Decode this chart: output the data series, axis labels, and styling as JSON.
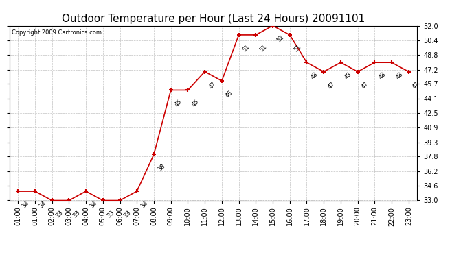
{
  "title": "Outdoor Temperature per Hour (Last 24 Hours) 20091101",
  "copyright": "Copyright 2009 Cartronics.com",
  "hours": [
    "01:00",
    "01:00",
    "02:00",
    "03:00",
    "04:00",
    "05:00",
    "06:00",
    "07:00",
    "08:00",
    "09:00",
    "10:00",
    "11:00",
    "12:00",
    "13:00",
    "14:00",
    "15:00",
    "16:00",
    "17:00",
    "18:00",
    "19:00",
    "20:00",
    "21:00",
    "22:00",
    "23:00"
  ],
  "values": [
    34,
    34,
    33,
    33,
    34,
    33,
    33,
    34,
    38,
    45,
    45,
    47,
    46,
    51,
    51,
    52,
    51,
    48,
    47,
    48,
    47,
    48,
    48,
    47
  ],
  "ylim": [
    33.0,
    52.0
  ],
  "yticks": [
    33.0,
    34.6,
    36.2,
    37.8,
    39.3,
    40.9,
    42.5,
    44.1,
    45.7,
    47.2,
    48.8,
    50.4,
    52.0
  ],
  "line_color": "#cc0000",
  "marker_color": "#cc0000",
  "bg_color": "#ffffff",
  "grid_color": "#bbbbbb",
  "title_fontsize": 11,
  "tick_fontsize": 7,
  "annot_fontsize": 6,
  "copyright_fontsize": 6
}
